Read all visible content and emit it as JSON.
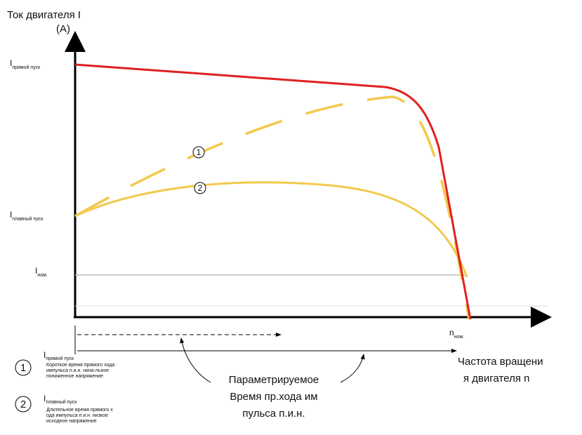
{
  "axes": {
    "y_label": "Ток двигателя I",
    "y_unit": "(A)",
    "x_label_lines": [
      "Частота вращени",
      "я двигателя n"
    ]
  },
  "levels": {
    "direct": {
      "symbol": "I",
      "sub": "прямой пуск"
    },
    "soft": {
      "symbol": "I",
      "sub": "плавный пуск"
    },
    "nominal": {
      "symbol": "I",
      "sub": "ном."
    }
  },
  "speed_nominal": {
    "symbol": "n",
    "sub": "ном."
  },
  "curve_markers": [
    "1",
    "2"
  ],
  "annotation_lines": [
    "Параметрируемое",
    "Время пр.хода им",
    "пульса п.и.н."
  ],
  "legend": [
    {
      "marker": "1",
      "symbol": "I",
      "sub": "прямой пуск",
      "lines": [
        "Короткое время прямого хода",
        "импульса п.и.н. нача-льное",
        "пониженное напряжение"
      ]
    },
    {
      "marker": "2",
      "symbol": "I",
      "sub": "плавный пуск",
      "lines": [
        "Длительное время прямого х",
        "ода импульса п.и.н. низкое",
        "исходное напряжение"
      ]
    }
  ]
}
